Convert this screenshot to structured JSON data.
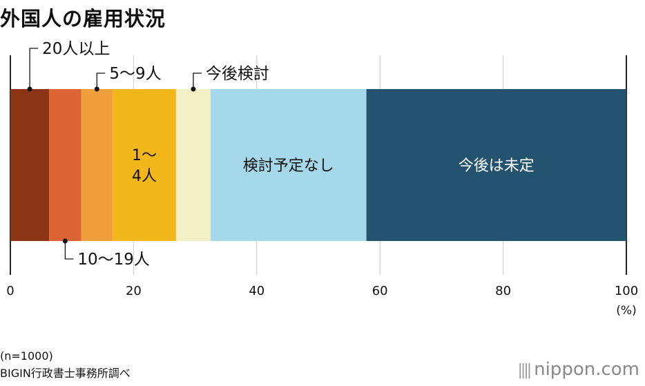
{
  "title": "外国人の雇用状況",
  "note_n": "(n=1000)",
  "source": "BIGIN行政書士事務所調べ",
  "logo": {
    "text": "nippon.com",
    "mark": "||||"
  },
  "chart_data": {
    "type": "bar",
    "orientation": "horizontal-stacked",
    "series": [
      {
        "name": "20人以上",
        "value": 6.3,
        "color": "#8b3416"
      },
      {
        "name": "10〜19人",
        "value": 5.2,
        "color": "#dc6333"
      },
      {
        "name": "5〜9人",
        "value": 5.1,
        "color": "#f19e3d"
      },
      {
        "name": "1〜4人",
        "value": 10.3,
        "color": "#f2b81b"
      },
      {
        "name": "今後検討",
        "value": 5.6,
        "color": "#f3f0c6"
      },
      {
        "name": "検討予定なし",
        "value": 25.3,
        "color": "#a5d8ea"
      },
      {
        "name": "今後は未定",
        "value": 42.2,
        "color": "#24536f"
      }
    ],
    "inside_labels": [
      {
        "series": 3,
        "lines": [
          "1〜",
          "4人"
        ],
        "color": "#111111"
      },
      {
        "series": 5,
        "lines": [
          "検討予定なし"
        ],
        "color": "#111111"
      },
      {
        "series": 6,
        "lines": [
          "今後は未定"
        ],
        "color": "#ffffff"
      }
    ],
    "callouts": [
      {
        "series": 0,
        "text": "20人以上",
        "side": "above"
      },
      {
        "series": 2,
        "text": "5〜9人",
        "side": "above"
      },
      {
        "series": 4,
        "text": "今後検討",
        "side": "above"
      },
      {
        "series": 1,
        "text": "10〜19人",
        "side": "below"
      }
    ],
    "xlim": [
      0,
      100
    ],
    "xticks": [
      "0",
      "20",
      "40",
      "60",
      "80",
      "100"
    ],
    "xunit": "(%)",
    "grid": true
  }
}
